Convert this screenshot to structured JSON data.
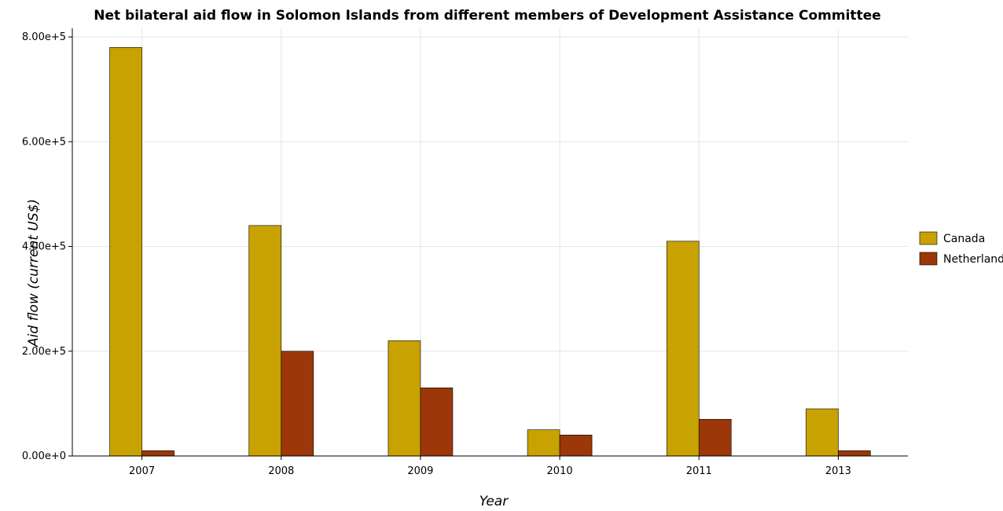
{
  "chart_data": {
    "type": "bar",
    "title": "Net bilateral aid flow in Solomon Islands from different members of Development Assistance Committee",
    "xlabel": "Year",
    "ylabel": "Aid flow (current US$)",
    "categories": [
      "2007",
      "2008",
      "2009",
      "2010",
      "2011",
      "2013"
    ],
    "series": [
      {
        "name": "Canada",
        "color": "#c8a200",
        "values": [
          780000,
          440000,
          220000,
          50000,
          410000,
          90000
        ]
      },
      {
        "name": "Netherlands",
        "color": "#9b3708",
        "values": [
          10000,
          200000,
          130000,
          40000,
          70000,
          10000
        ]
      }
    ],
    "ylim": [
      0,
      800000
    ],
    "yticks": [
      0,
      200000,
      400000,
      600000,
      800000
    ],
    "ytick_labels": [
      "0.00e+0",
      "2.00e+5",
      "4.00e+5",
      "6.00e+5",
      "8.00e+5"
    ],
    "grid": true,
    "legend_position": "right"
  }
}
